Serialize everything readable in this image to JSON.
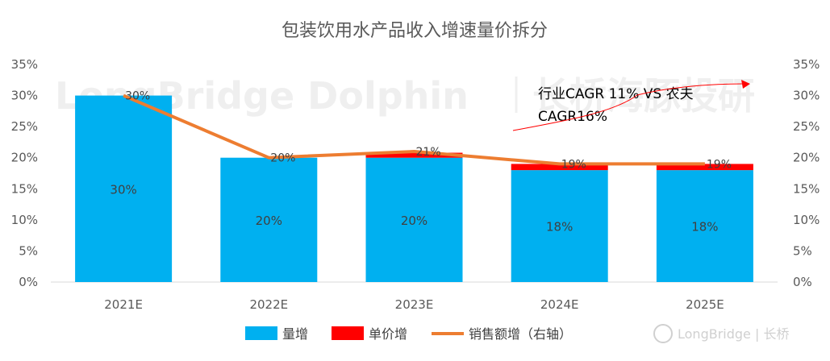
{
  "chart_data": {
    "type": "bar",
    "title": "包装饮用水产品收入增速量价拆分",
    "categories": [
      "2021E",
      "2022E",
      "2023E",
      "2024E",
      "2025E"
    ],
    "series": [
      {
        "name": "量增",
        "kind": "stacked-bar",
        "color": "#00b0f0",
        "values": [
          30,
          20,
          20,
          18,
          18
        ],
        "labels": [
          "30%",
          "20%",
          "20%",
          "18%",
          "18%"
        ]
      },
      {
        "name": "单价增",
        "kind": "stacked-bar",
        "color": "#ff0000",
        "values": [
          0,
          0,
          0.8,
          1,
          1
        ]
      },
      {
        "name": "销售额增（右轴）",
        "kind": "line",
        "color": "#ed7d31",
        "axis": "right",
        "values": [
          30,
          20,
          21,
          19,
          19
        ],
        "labels": [
          "30%",
          "20%",
          "21%",
          "19%",
          "19%"
        ]
      }
    ],
    "ylim": [
      0,
      35
    ],
    "y_ticks": [
      "0%",
      "5%",
      "10%",
      "15%",
      "20%",
      "25%",
      "30%",
      "35%"
    ],
    "y2_ticks": [
      "0%",
      "5%",
      "10%",
      "15%",
      "20%",
      "25%",
      "30%",
      "35%"
    ],
    "legend_position": "bottom",
    "grid": false,
    "annotation": {
      "line1": "行业CAGR 11% VS  农夫",
      "line2": "CAGR16%"
    }
  },
  "watermark": {
    "text": "LongBridge Dolphin",
    "cn": "长桥海豚投研",
    "logo_text": "LongBridge | 长桥"
  }
}
